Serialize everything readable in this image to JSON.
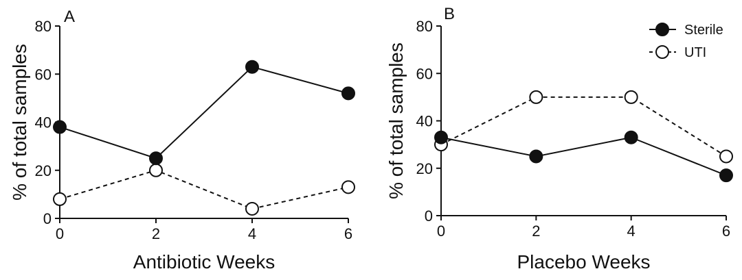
{
  "chart_data": [
    {
      "type": "line",
      "panel_label": "A",
      "xlabel": "Antibiotic Weeks",
      "ylabel": "% of total samples",
      "x": [
        0,
        2,
        4,
        6
      ],
      "xticks": [
        "0",
        "2",
        "4",
        "6"
      ],
      "yticks": [
        "0",
        "20",
        "40",
        "60",
        "80"
      ],
      "xlim": [
        0,
        6
      ],
      "ylim": [
        0,
        80
      ],
      "grid": false,
      "series": [
        {
          "name": "Sterile",
          "values": [
            38,
            25,
            63,
            52
          ],
          "marker": "filled-circle",
          "line": "solid"
        },
        {
          "name": "UTI",
          "values": [
            8,
            20,
            4,
            13
          ],
          "marker": "open-circle",
          "line": "dashed"
        }
      ]
    },
    {
      "type": "line",
      "panel_label": "B",
      "xlabel": "Placebo Weeks",
      "ylabel": "% of total samples",
      "x": [
        0,
        2,
        4,
        6
      ],
      "xticks": [
        "0",
        "2",
        "4",
        "6"
      ],
      "yticks": [
        "0",
        "20",
        "40",
        "60",
        "80"
      ],
      "xlim": [
        0,
        6
      ],
      "ylim": [
        0,
        80
      ],
      "grid": false,
      "legend_position": "top-right",
      "series": [
        {
          "name": "Sterile",
          "values": [
            33,
            25,
            33,
            17
          ],
          "marker": "filled-circle",
          "line": "solid"
        },
        {
          "name": "UTI",
          "values": [
            30,
            50,
            50,
            25
          ],
          "marker": "open-circle",
          "line": "dashed"
        }
      ]
    }
  ],
  "colors": {
    "line": "#111111",
    "open_fill": "#ffffff"
  }
}
